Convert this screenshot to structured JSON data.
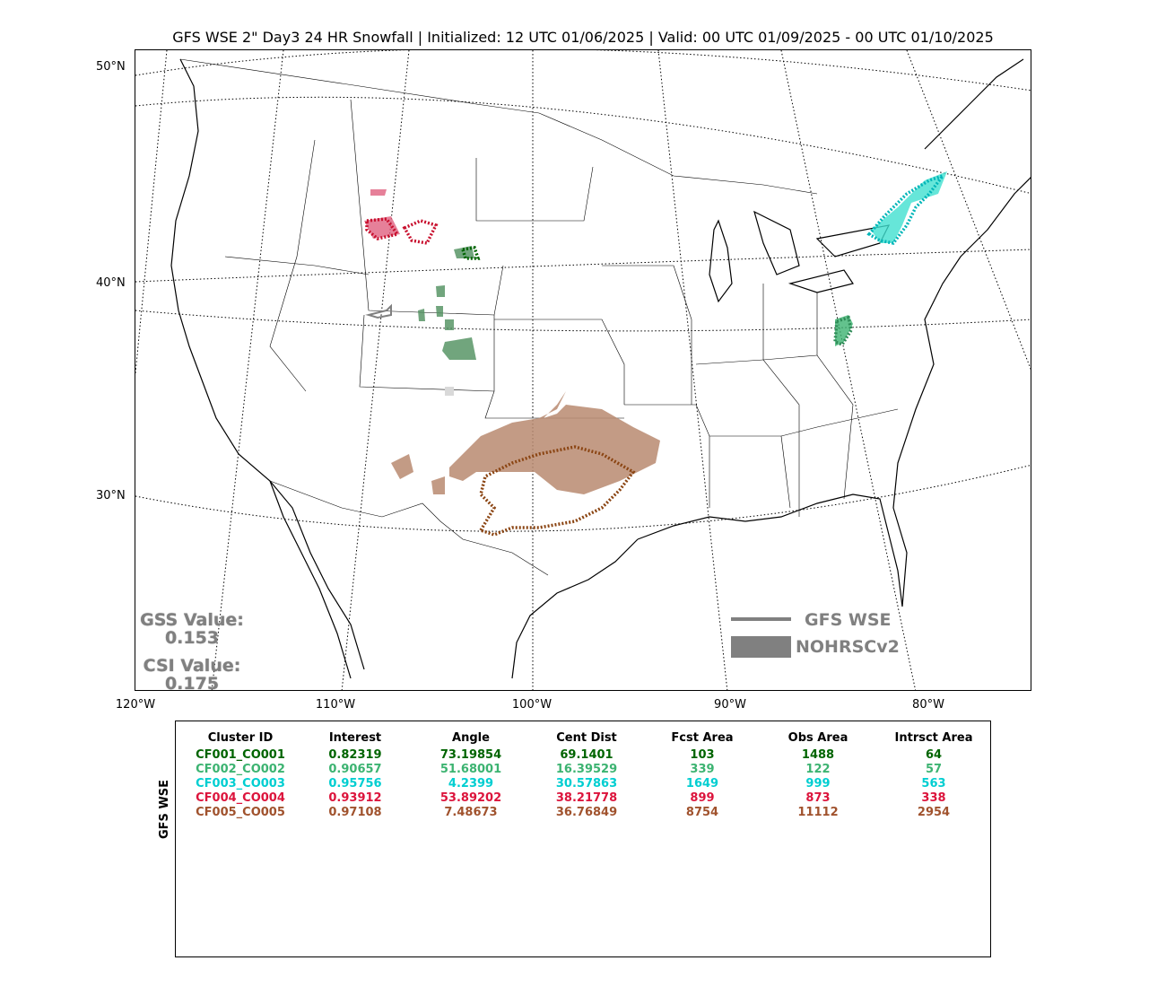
{
  "title": "GFS WSE 2\" Day3 24 HR Snowfall | Initialized: 12 UTC 01/06/2025 | Valid: 00 UTC 01/09/2025 - 00 UTC 01/10/2025",
  "map": {
    "lat_labels": [
      "50°N",
      "40°N",
      "30°N"
    ],
    "lon_labels": [
      "120°W",
      "110°W",
      "100°W",
      "90°W",
      "80°W"
    ],
    "clusters": [
      {
        "id": "CF001_CO001",
        "color": "#006400",
        "obs_color": "#4d8f5c",
        "region": "Wyoming/Nebraska/Colorado"
      },
      {
        "id": "CF002_CO002",
        "color": "#2e8b57",
        "obs_color": "#3cb371",
        "region": "West Virginia"
      },
      {
        "id": "CF003_CO003",
        "color": "#00ced1",
        "obs_color": "#40e0d0",
        "region": "New York"
      },
      {
        "id": "CF004_CO004",
        "color": "#dc143c",
        "obs_color": "#e06080",
        "region": "Montana/Wyoming"
      },
      {
        "id": "CF005_CO005",
        "color": "#a0522d",
        "obs_color": "#b98a70",
        "region": "Texas/Oklahoma"
      }
    ]
  },
  "scores": {
    "gss_label": "GSS Value:",
    "gss_value": "0.153",
    "csi_label": "CSI Value:",
    "csi_value": "0.175"
  },
  "legend": {
    "forecast_label": "GFS WSE",
    "observed_label": "NOHRSCv2",
    "color": "#808080"
  },
  "table": {
    "ylabel": "GFS WSE",
    "headers": [
      "Cluster ID",
      "Interest",
      "Angle",
      "Cent Dist",
      "Fcst Area",
      "Obs Area",
      "Intrsct Area"
    ],
    "rows": [
      {
        "color": "#006400",
        "cells": [
          "CF001_CO001",
          "0.82319",
          "73.19854",
          "69.1401",
          "103",
          "1488",
          "64"
        ]
      },
      {
        "color": "#3cb371",
        "cells": [
          "CF002_CO002",
          "0.90657",
          "51.68001",
          "16.39529",
          "339",
          "122",
          "57"
        ]
      },
      {
        "color": "#00ced1",
        "cells": [
          "CF003_CO003",
          "0.95756",
          "4.2399",
          "30.57863",
          "1649",
          "999",
          "563"
        ]
      },
      {
        "color": "#dc143c",
        "cells": [
          "CF004_CO004",
          "0.93912",
          "53.89202",
          "38.21778",
          "899",
          "873",
          "338"
        ]
      },
      {
        "color": "#a0522d",
        "cells": [
          "CF005_CO005",
          "0.97108",
          "7.48673",
          "36.76849",
          "8754",
          "11112",
          "2954"
        ]
      }
    ]
  }
}
